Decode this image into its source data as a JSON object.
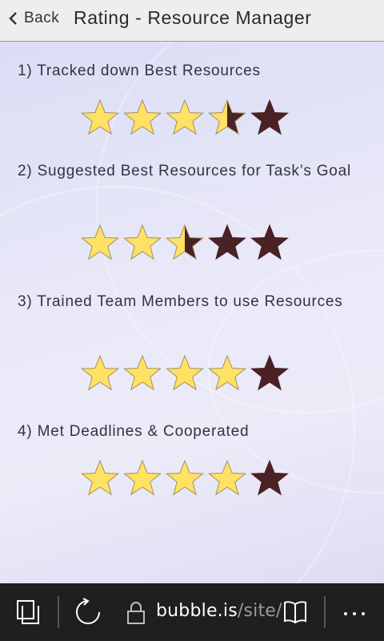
{
  "header": {
    "back_label": "Back",
    "title": "Rating - Resource Manager"
  },
  "ratings": [
    {
      "label": "1) Tracked down Best Resources",
      "value": 3.5,
      "max": 5
    },
    {
      "label": "2) Suggested Best Resources for Task’s Goal",
      "value": 2.5,
      "max": 5
    },
    {
      "label": "3) Trained Team Members to use Resources",
      "value": 4,
      "max": 5
    },
    {
      "label": "4) Met Deadlines & Cooperated",
      "value": 4,
      "max": 5
    }
  ],
  "browser_bar": {
    "url_host": "bubble.is",
    "url_path": "/site/",
    "icons": [
      "tabs-icon",
      "refresh-icon",
      "lock-icon",
      "reading-view-icon",
      "more-icon"
    ]
  },
  "colors": {
    "star_filled": "#ffe164",
    "star_empty": "#4a2124",
    "star_stroke": "#a39062",
    "header_bg": "#eeeeee",
    "bar_bg": "#1f1f1f"
  }
}
